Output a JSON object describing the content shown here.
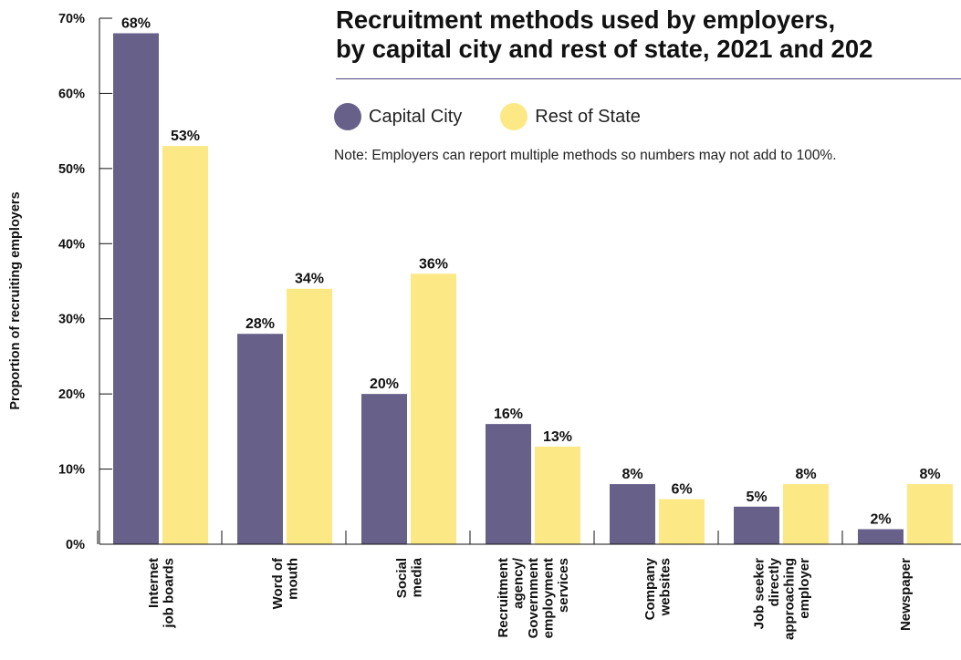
{
  "chart_data": {
    "type": "bar",
    "title_line1": "Recruitment methods used by employers,",
    "title_line2": "by capital city and rest of state, 2021 and 202",
    "note": "Note: Employers can report multiple methods so numbers may not add to 100%.",
    "ylabel": "Proportion of recruiting employers",
    "xlabel": "",
    "ylim": [
      0,
      70
    ],
    "yticks": [
      "0%",
      "10%",
      "20%",
      "30%",
      "40%",
      "50%",
      "60%",
      "70%"
    ],
    "categories": [
      [
        "Internet",
        "job boards"
      ],
      [
        "Word of",
        "mouth"
      ],
      [
        "Social",
        "media"
      ],
      [
        "Recruitment",
        "agency/",
        "Government",
        "employment",
        "services"
      ],
      [
        "Company",
        "websites"
      ],
      [
        "Job seeker",
        "directly",
        "approaching",
        "employer"
      ],
      [
        "Newspaper"
      ]
    ],
    "series": [
      {
        "name": "Capital City",
        "color": "#67618a",
        "values": [
          68,
          28,
          20,
          16,
          8,
          5,
          2
        ],
        "labels": [
          "68%",
          "28%",
          "20%",
          "16%",
          "8%",
          "5%",
          "2%"
        ]
      },
      {
        "name": "Rest of State",
        "color": "#fce986",
        "values": [
          53,
          34,
          36,
          13,
          6,
          8,
          8
        ],
        "labels": [
          "53%",
          "34%",
          "36%",
          "13%",
          "6%",
          "8%",
          "8%"
        ]
      }
    ],
    "grid": false,
    "legend_position": "top"
  }
}
